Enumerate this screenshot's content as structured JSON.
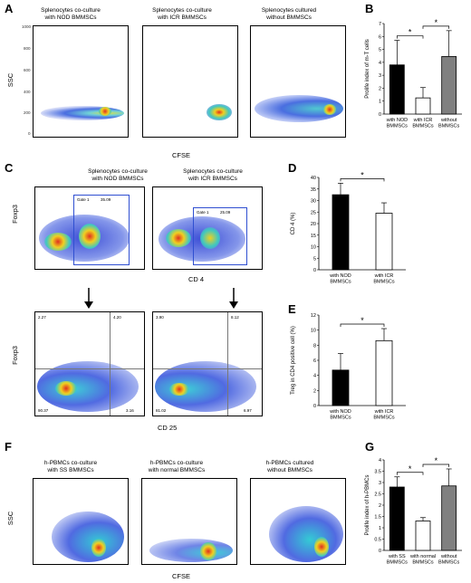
{
  "panel_letters": {
    "A": "A",
    "B": "B",
    "C": "C",
    "D": "D",
    "E": "E",
    "F": "F",
    "G": "G"
  },
  "panelA": {
    "titles": [
      "Splenocytes co-culture\nwith NOD BMMSCs",
      "Splenocytes co-culture\nwith ICR BMMSCs",
      "Splenocytes cultured\nwithout BMMSCs"
    ],
    "ylabel": "SSC",
    "xlabel": "CFSE",
    "yticks": [
      "1000",
      "800",
      "600",
      "400",
      "200",
      "0"
    ]
  },
  "panelC": {
    "titles": [
      "Splenocytes co-culture\nwith NOD BMMSCs",
      "Splenocytes co-culture\nwith ICR BMMSCs"
    ],
    "ylabel_top": "Foxp3",
    "xlabel_top": "CD 4",
    "ylabel_bottom": "Foxp3",
    "xlabel_bottom": "CD 25",
    "gate_label": "Gate 1",
    "gate_values": [
      "35.09",
      "25.09"
    ],
    "quadrants_left": [
      "2.27",
      "4.20",
      "90.37",
      "3.16"
    ],
    "quadrants_right": [
      "3.90",
      "8.12",
      "81.02",
      "6.97"
    ]
  },
  "panelF": {
    "titles": [
      "h-PBMCs co-culture\nwith SS BMMSCs",
      "h-PBMCs co-culture\nwith normal BMMSCs",
      "h-PBMCs cultured\nwithout BMMSCs"
    ],
    "ylabel": "SSC",
    "xlabel": "CFSE"
  },
  "chart_data": [
    {
      "id": "B",
      "type": "bar",
      "categories": [
        "with NOD\nBMMSCs",
        "with ICR\nBMMSCs",
        "without\nBMMSCs"
      ],
      "values": [
        3.8,
        1.25,
        4.45
      ],
      "errors": [
        1.9,
        0.8,
        2.0
      ],
      "colors": [
        "#000000",
        "#ffffff",
        "#808080"
      ],
      "ylabel": "Prolife index of m-T cells",
      "ylim": [
        0,
        7
      ],
      "yticks": [
        0,
        1,
        2,
        3,
        4,
        5,
        6,
        7
      ],
      "significance": [
        [
          "0",
          "1",
          "*"
        ],
        [
          "1",
          "2",
          "*"
        ]
      ]
    },
    {
      "id": "D",
      "type": "bar",
      "categories": [
        "with NOD\nBMMSCs",
        "with ICR\nBMMSCs"
      ],
      "values": [
        32.5,
        24.5
      ],
      "errors": [
        5.0,
        4.5
      ],
      "colors": [
        "#000000",
        "#ffffff"
      ],
      "ylabel": "CD 4 (%)",
      "ylim": [
        0,
        40
      ],
      "yticks": [
        0,
        5,
        10,
        15,
        20,
        25,
        30,
        35,
        40
      ],
      "significance": [
        [
          "0",
          "1",
          "*"
        ]
      ]
    },
    {
      "id": "E",
      "type": "bar",
      "categories": [
        "with NOD\nBMMSCs",
        "with ICR\nBMMSCs"
      ],
      "values": [
        4.7,
        8.6
      ],
      "errors": [
        2.2,
        1.6
      ],
      "colors": [
        "#000000",
        "#ffffff"
      ],
      "ylabel": "Treg in CD4 positive cell (%)",
      "ylim": [
        0,
        12
      ],
      "yticks": [
        0,
        2,
        4,
        6,
        8,
        10,
        12
      ],
      "significance": [
        [
          "0",
          "1",
          "*"
        ]
      ]
    },
    {
      "id": "G",
      "type": "bar",
      "categories": [
        "with SS\nBMMSCs",
        "with normal\nBMMSCs",
        "without\nBMMSCs"
      ],
      "values": [
        2.8,
        1.3,
        2.85
      ],
      "errors": [
        0.45,
        0.15,
        0.75
      ],
      "colors": [
        "#000000",
        "#ffffff",
        "#808080"
      ],
      "ylabel": "Prolife index of h-PBMCs",
      "ylim": [
        0,
        4
      ],
      "yticks": [
        0,
        0.5,
        1,
        1.5,
        2,
        2.5,
        3,
        3.5,
        4
      ],
      "significance": [
        [
          "0",
          "1",
          "*"
        ],
        [
          "1",
          "2",
          "*"
        ]
      ]
    }
  ]
}
